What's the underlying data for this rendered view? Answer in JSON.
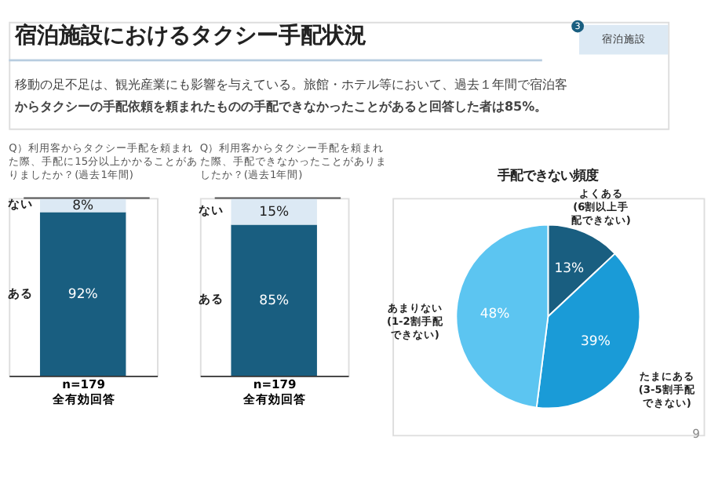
{
  "chart_data": [
    {
      "type": "other",
      "title": "宿泊施設におけるタクシー手配状況",
      "subtitle": "移動の足不足は、観光産業にも影響を与えている。旅館・ホテル等において、過去１年間で宿泊客からタクシーの手配依頼を頼まれたものの手配できなかったことがあると回答した者は85%。",
      "annotations": [
        "3",
        "宿泊施設"
      ]
    },
    {
      "type": "bar",
      "stacked": true,
      "title": "Q）利用客からタクシー手配を頼まれた際、手配に15分以上かかることがありましたか？(過去1年間)",
      "xlabel": "n=179",
      "annotations": [
        "全有効回答"
      ],
      "categories": [
        null
      ],
      "series": [
        {
          "name": "ある",
          "color": "#195e80",
          "values": [
            92
          ],
          "value_labels": [
            "92%"
          ]
        },
        {
          "name": "ない",
          "color": "#dce9f4",
          "values": [
            8
          ],
          "value_labels": [
            "8%"
          ]
        }
      ]
    },
    {
      "type": "bar",
      "stacked": true,
      "title": "Q）利用客からタクシー手配を頼まれた際、手配できなかったことがありましたか？(過去1年間)",
      "xlabel": "n=179",
      "annotations": [
        "全有効回答"
      ],
      "categories": [
        null
      ],
      "series": [
        {
          "name": "ある",
          "color": "#195e80",
          "values": [
            85
          ],
          "value_labels": [
            "85%"
          ]
        },
        {
          "name": "ない",
          "color": "#dce9f4",
          "values": [
            15
          ],
          "value_labels": [
            "15%"
          ]
        }
      ]
    },
    {
      "type": "pie",
      "title": "手配できない頻度",
      "categories": [
        "よくある(6割以上手配できない)",
        "たまにある(3-5割手配できない)",
        "あまりない(1-2割手配できない)"
      ],
      "values": [
        13,
        39,
        48
      ],
      "value_labels": [
        "13%",
        "39%",
        "48%"
      ],
      "colors": [
        "#195e80",
        "#1a9bd7",
        "#5cc5f1"
      ],
      "annotations": [
        "9"
      ]
    }
  ]
}
